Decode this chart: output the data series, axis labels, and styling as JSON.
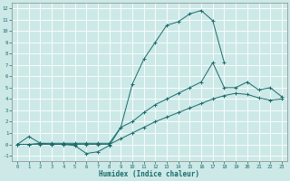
{
  "xlabel": "Humidex (Indice chaleur)",
  "xlim": [
    -0.5,
    23.5
  ],
  "ylim": [
    -1.5,
    12.5
  ],
  "xticks": [
    0,
    1,
    2,
    3,
    4,
    5,
    6,
    7,
    8,
    9,
    10,
    11,
    12,
    13,
    14,
    15,
    16,
    17,
    18,
    19,
    20,
    21,
    22,
    23
  ],
  "yticks": [
    -1,
    0,
    1,
    2,
    3,
    4,
    5,
    6,
    7,
    8,
    9,
    10,
    11,
    12
  ],
  "bg_color": "#cce9e7",
  "line_color": "#1a6b6b",
  "grid_color": "#ffffff",
  "line1_x": [
    0,
    1,
    2,
    3,
    4,
    5,
    6,
    7,
    8,
    9,
    10,
    11,
    12,
    13,
    14,
    15,
    16,
    17,
    18
  ],
  "line1_y": [
    0.0,
    0.7,
    0.1,
    0.0,
    0.0,
    -0.1,
    -0.8,
    -0.65,
    -0.1,
    1.5,
    5.3,
    7.5,
    9.0,
    10.5,
    10.8,
    11.5,
    11.8,
    10.9,
    7.2
  ],
  "line2_x": [
    0,
    1,
    2,
    3,
    4,
    5,
    6,
    7,
    8,
    9,
    10,
    11,
    12,
    13,
    14,
    15,
    16,
    17,
    18,
    19,
    20,
    21,
    22,
    23
  ],
  "line2_y": [
    0.0,
    0.0,
    0.1,
    0.1,
    0.1,
    0.1,
    0.1,
    0.1,
    0.1,
    1.5,
    2.0,
    2.8,
    3.5,
    4.0,
    4.5,
    5.0,
    5.5,
    7.2,
    5.0,
    5.0,
    5.5,
    4.8,
    5.0,
    4.2
  ],
  "line3_x": [
    0,
    1,
    2,
    3,
    4,
    5,
    6,
    7,
    8,
    9,
    10,
    11,
    12,
    13,
    14,
    15,
    16,
    17,
    18,
    19,
    20,
    21,
    22,
    23
  ],
  "line3_y": [
    0.0,
    0.0,
    0.0,
    0.0,
    0.0,
    0.0,
    0.0,
    0.0,
    0.0,
    0.5,
    1.0,
    1.5,
    2.0,
    2.4,
    2.8,
    3.2,
    3.6,
    4.0,
    4.3,
    4.5,
    4.4,
    4.1,
    3.9,
    4.0
  ],
  "lw": 0.7,
  "ms": 2.5,
  "mew": 0.7
}
